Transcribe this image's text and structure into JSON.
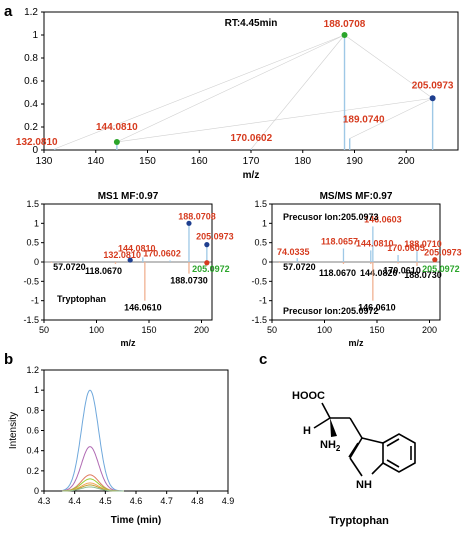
{
  "panel_letters": {
    "a": "a",
    "b": "b",
    "c": "c"
  },
  "colors": {
    "red": "#d63b1f",
    "green": "#2ba52b",
    "blue": "#1f3f8f",
    "stem": "#9ec8e6",
    "black": "#000000"
  },
  "chart_data": [
    {
      "id": "top",
      "type": "stem",
      "title": "RT:4.45min",
      "xlabel": "m/z",
      "ylabel": "",
      "xlim": [
        130,
        210
      ],
      "ylim": [
        0,
        1.2
      ],
      "xticks": [
        "130",
        "140",
        "150",
        "160",
        "170",
        "180",
        "190",
        "200"
      ],
      "yticks": [
        "0",
        "0.2",
        "0.4",
        "0.6",
        "0.8",
        "1",
        "1.2"
      ],
      "peaks": [
        {
          "x": 132.081,
          "y": 0.01,
          "label": "132.0810",
          "color": "red",
          "marker": ""
        },
        {
          "x": 144.081,
          "y": 0.07,
          "label": "144.0810",
          "color": "red",
          "marker": "green"
        },
        {
          "x": 170.0602,
          "y": 0.01,
          "label": "170.0602",
          "color": "red",
          "marker": ""
        },
        {
          "x": 188.0708,
          "y": 1.0,
          "label": "188.0708",
          "color": "red",
          "marker": "green"
        },
        {
          "x": 189.074,
          "y": 0.1,
          "label": "189.0740",
          "color": "red",
          "marker": ""
        },
        {
          "x": 205.0973,
          "y": 0.45,
          "label": "205.0973",
          "color": "red",
          "marker": "blue"
        }
      ]
    },
    {
      "id": "ms1",
      "type": "mirror-stem",
      "title": "MS1 MF:0.97",
      "xlabel": "m/z",
      "xlim": [
        50,
        210
      ],
      "ylim": [
        -1.5,
        1.5
      ],
      "xticks": [
        "50",
        "100",
        "150",
        "200"
      ],
      "yticks": [
        "1.5",
        "1",
        "0.5",
        "0",
        "-0.5",
        "-1",
        "-1.5"
      ],
      "compound": "Tryptophan",
      "upper": [
        {
          "x": 188.0708,
          "y": 1.0,
          "label": "188.0708",
          "color": "red",
          "marker": "blue"
        },
        {
          "x": 205.0973,
          "y": 0.45,
          "label": "205.0973",
          "color": "red",
          "marker": "blue"
        },
        {
          "x": 144.081,
          "y": 0.12,
          "label": "144.0810",
          "color": "red",
          "marker": ""
        },
        {
          "x": 132.081,
          "y": 0.05,
          "label": "132.0810",
          "color": "red",
          "marker": "blue"
        },
        {
          "x": 170.0602,
          "y": 0.04,
          "label": "170.0602",
          "color": "red",
          "marker": ""
        }
      ],
      "lower": [
        {
          "x": 57.072,
          "y": -0.02,
          "label": "57.0720",
          "color": "black",
          "marker": ""
        },
        {
          "x": 118.067,
          "y": -0.05,
          "label": "118.0670",
          "color": "black",
          "marker": ""
        },
        {
          "x": 146.061,
          "y": -1.0,
          "label": "146.0610",
          "color": "black",
          "marker": ""
        },
        {
          "x": 188.073,
          "y": -0.3,
          "label": "188.0730",
          "color": "black",
          "marker": ""
        },
        {
          "x": 205.0972,
          "y": -0.02,
          "label": "205.0972",
          "color": "green",
          "marker": "red"
        }
      ]
    },
    {
      "id": "msms",
      "type": "mirror-stem",
      "title": "MS/MS MF:0.97",
      "xlabel": "m/z",
      "xlim": [
        50,
        210
      ],
      "ylim": [
        -1.5,
        1.5
      ],
      "xticks": [
        "50",
        "100",
        "150",
        "200"
      ],
      "yticks": [
        "1.5",
        "1",
        "0.5",
        "0",
        "-0.5",
        "-1",
        "-1.5"
      ],
      "precursor_top": "Precusor Ion:205.0973",
      "precursor_bottom": "Precusor Ion:205.0972",
      "upper": [
        {
          "x": 146.0603,
          "y": 0.92,
          "label": "146.0603",
          "color": "red",
          "marker": ""
        },
        {
          "x": 118.0657,
          "y": 0.35,
          "label": "118.0657",
          "color": "red",
          "marker": ""
        },
        {
          "x": 144.081,
          "y": 0.3,
          "label": "144.0810",
          "color": "red",
          "marker": ""
        },
        {
          "x": 188.071,
          "y": 0.28,
          "label": "188.0710",
          "color": "red",
          "marker": ""
        },
        {
          "x": 170.0605,
          "y": 0.18,
          "label": "170.0605",
          "color": "red",
          "marker": ""
        },
        {
          "x": 74.0335,
          "y": 0.1,
          "label": "74.0335",
          "color": "red",
          "marker": ""
        },
        {
          "x": 205.0973,
          "y": 0.06,
          "label": "205.0973",
          "color": "red",
          "marker": "red"
        }
      ],
      "lower": [
        {
          "x": 57.072,
          "y": -0.02,
          "label": "57.0720",
          "color": "black",
          "marker": ""
        },
        {
          "x": 118.067,
          "y": -0.05,
          "label": "118.0670",
          "color": "black",
          "marker": ""
        },
        {
          "x": 144.082,
          "y": -0.05,
          "label": "144.0820",
          "color": "black",
          "marker": ""
        },
        {
          "x": 146.061,
          "y": -1.0,
          "label": "146.0610",
          "color": "black",
          "marker": ""
        },
        {
          "x": 170.061,
          "y": -0.04,
          "label": "170.0610",
          "color": "black",
          "marker": ""
        },
        {
          "x": 188.073,
          "y": -0.1,
          "label": "188.0730",
          "color": "black",
          "marker": ""
        },
        {
          "x": 205.0972,
          "y": -0.02,
          "label": "205.0972",
          "color": "green",
          "marker": ""
        }
      ]
    },
    {
      "id": "chrom",
      "type": "line",
      "xlabel": "Time (min)",
      "ylabel": "Intensity",
      "xlim": [
        4.3,
        4.9
      ],
      "ylim": [
        0,
        1.2
      ],
      "xticks": [
        "4.3",
        "4.4",
        "4.5",
        "4.6",
        "4.7",
        "4.8",
        "4.9"
      ],
      "yticks": [
        "0",
        "0.2",
        "0.4",
        "0.6",
        "0.8",
        "1",
        "1.2"
      ],
      "center": 4.45,
      "series": [
        {
          "peak": 1.0,
          "color": "#6fa8dc"
        },
        {
          "peak": 0.44,
          "color": "#b06ab3"
        },
        {
          "peak": 0.16,
          "color": "#e07a5f"
        },
        {
          "peak": 0.12,
          "color": "#9acd32"
        },
        {
          "peak": 0.08,
          "color": "#f2a65a"
        },
        {
          "peak": 0.06,
          "color": "#c0a030"
        },
        {
          "peak": 0.04,
          "color": "#8fbc8f"
        }
      ]
    }
  ],
  "structure": {
    "hooc": "HOOC",
    "h": "H",
    "nh2": "NH",
    "nh2_sub": "2",
    "nh": "NH",
    "name": "Tryptophan"
  }
}
